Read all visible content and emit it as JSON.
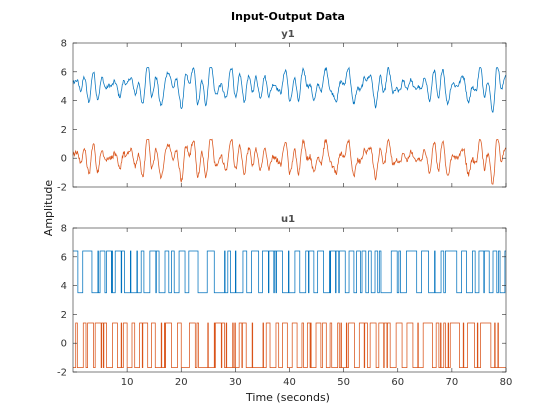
{
  "chart_data": {
    "type": "line",
    "title": "Input-Output Data",
    "xlabel": "Time (seconds)",
    "ylabel": "Amplitude",
    "xlim": [
      0,
      80
    ],
    "x_ticks": [
      10,
      20,
      30,
      40,
      50,
      60,
      70,
      80
    ],
    "grid": false,
    "colors": {
      "series1": "#0072BD",
      "series2": "#D95319",
      "axes": "#262626"
    },
    "panels": [
      {
        "title": "y1",
        "ylim": [
          -2,
          8
        ],
        "y_ticks": [
          -2,
          0,
          2,
          4,
          6,
          8
        ],
        "style": "continuous",
        "series": [
          {
            "color": "#0072BD",
            "baseline": 5.0,
            "amplitude": 1.1,
            "min": 3.2,
            "max": 6.3
          },
          {
            "color": "#D95319",
            "baseline": 0.0,
            "amplitude": 1.1,
            "min": -1.8,
            "max": 1.3
          }
        ]
      },
      {
        "title": "u1",
        "ylim": [
          -2,
          8
        ],
        "y_ticks": [
          -2,
          0,
          2,
          4,
          6,
          8
        ],
        "style": "step",
        "series": [
          {
            "color": "#0072BD",
            "levels": [
              3.5,
              6.4
            ]
          },
          {
            "color": "#D95319",
            "levels": [
              -1.7,
              1.4
            ]
          }
        ]
      }
    ]
  }
}
